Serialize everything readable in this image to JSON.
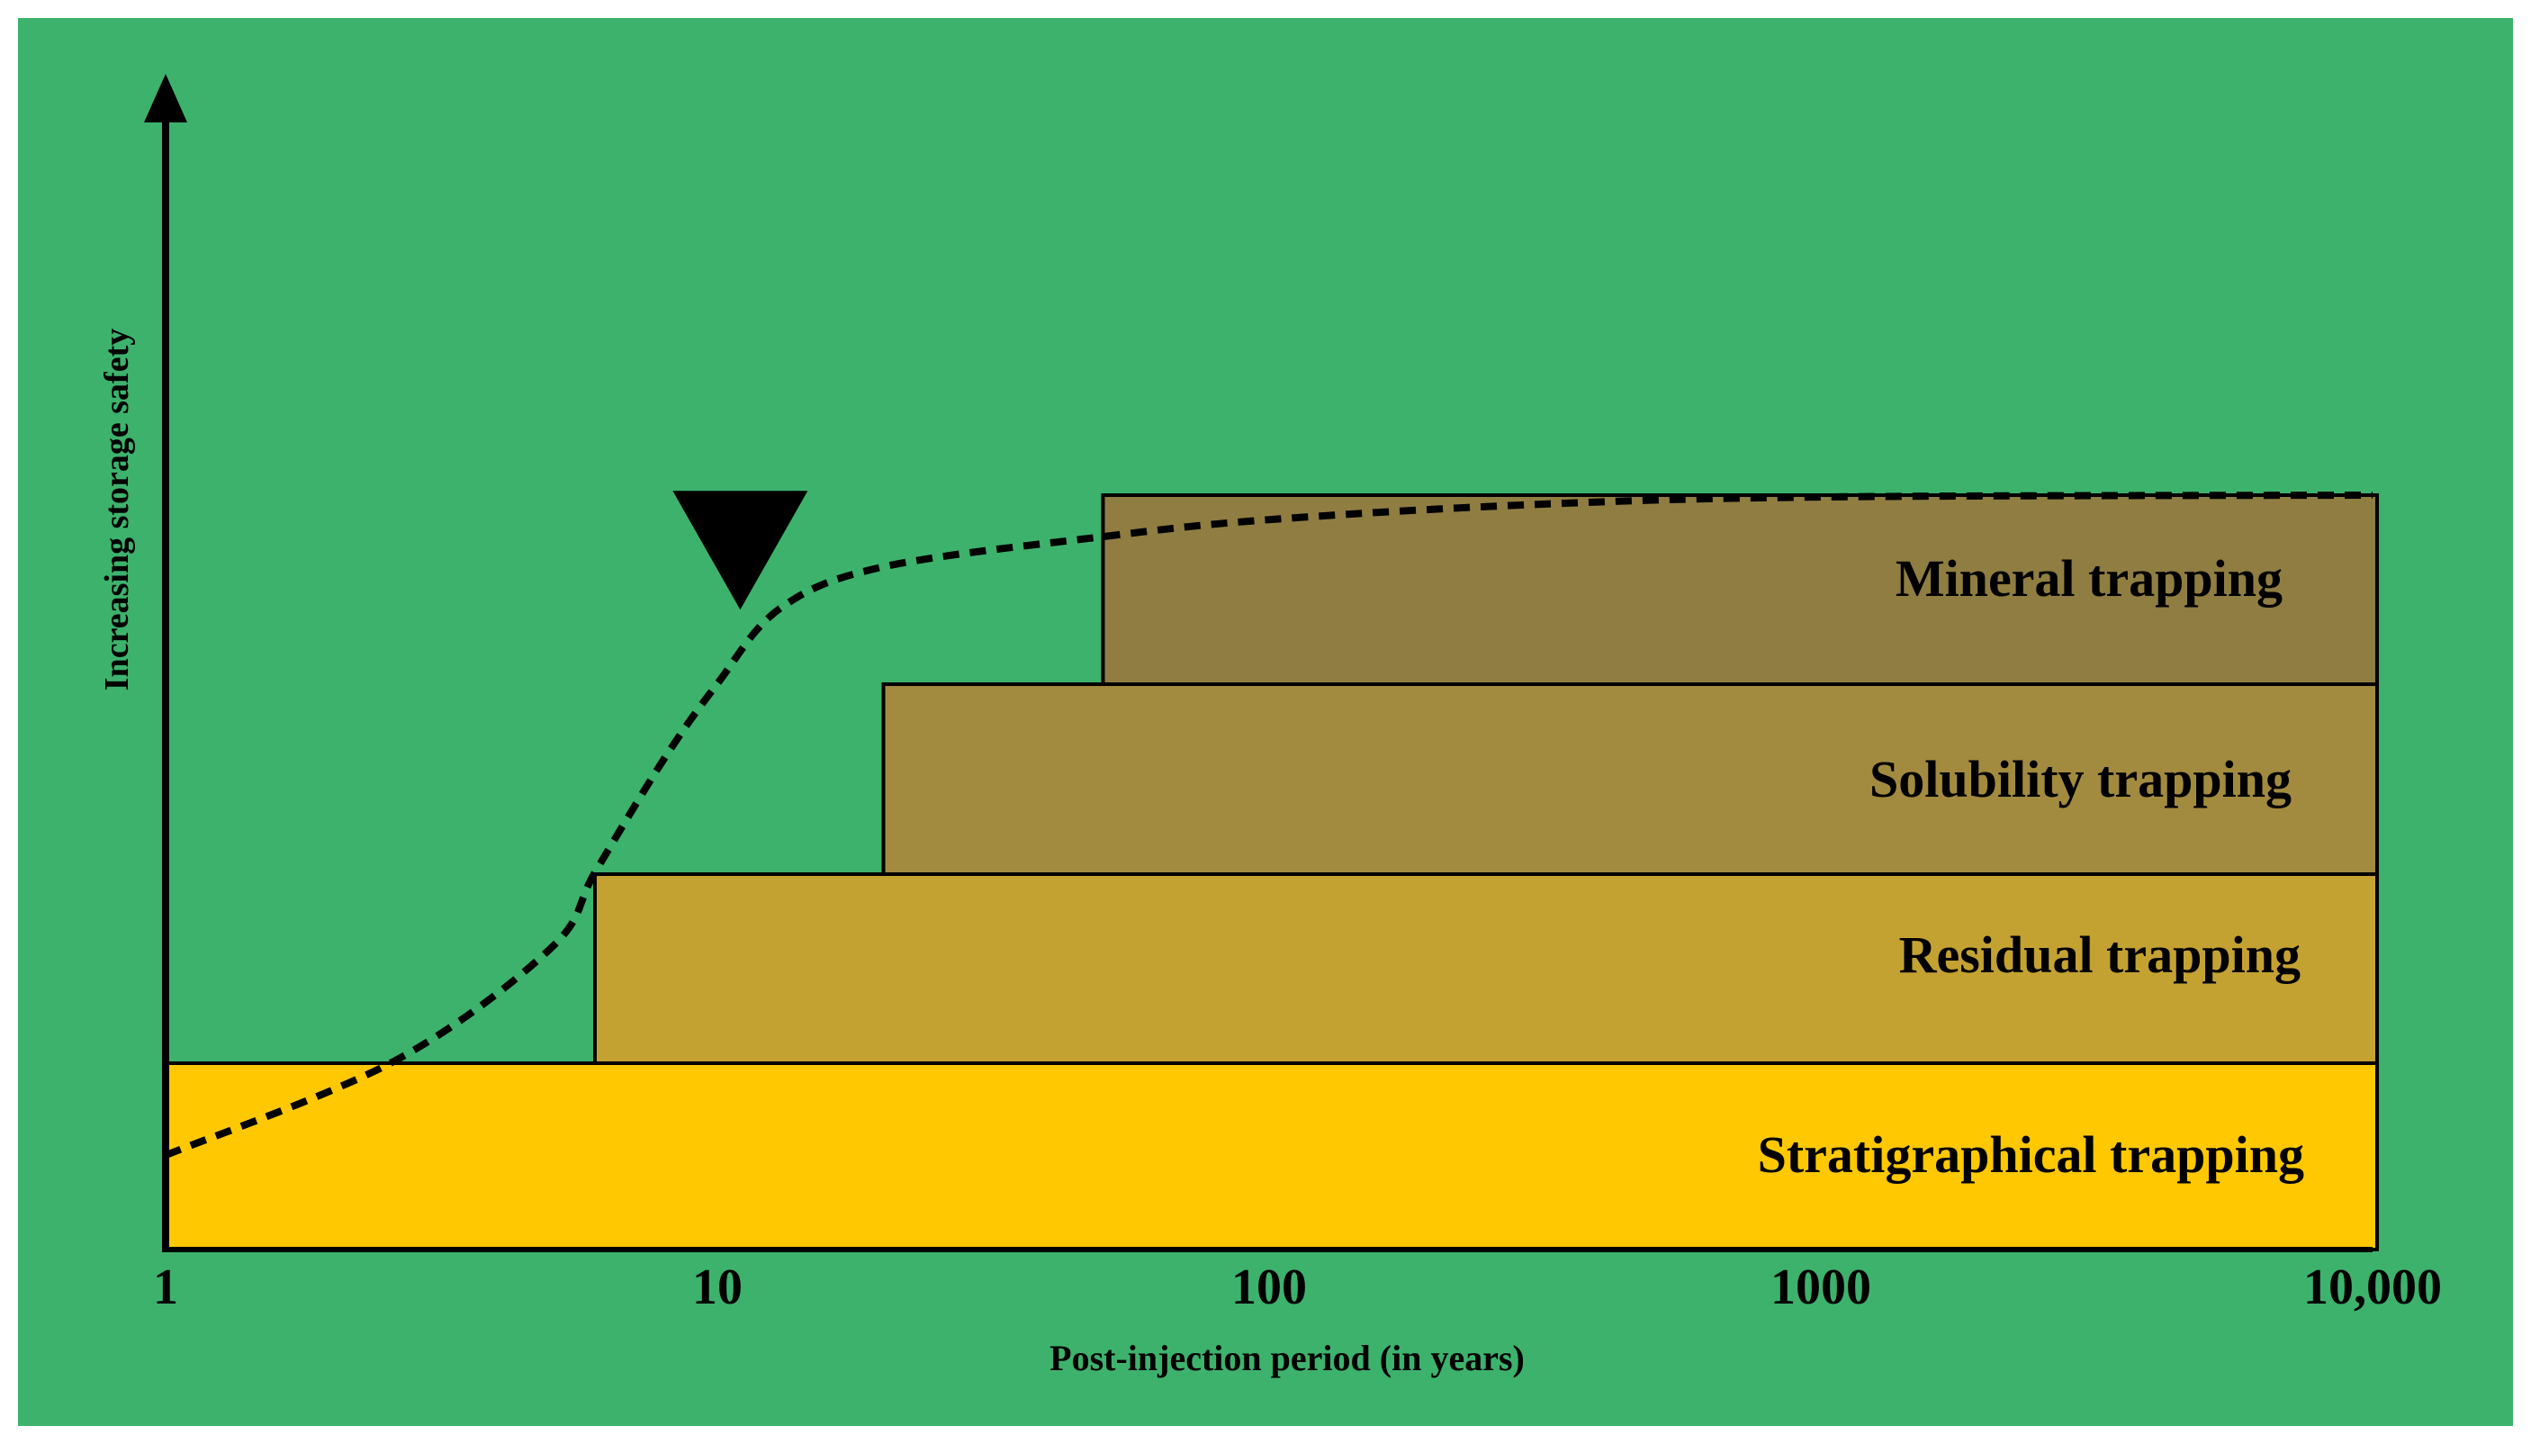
{
  "colors": {
    "background": "#3DB26D",
    "stratigraphical": "#FFC800",
    "residual": "#C4A232",
    "solubility": "#A28A3F",
    "mineral": "#8F7D42",
    "ink": "#000000"
  },
  "axes": {
    "y_label": "Increasing storage safety",
    "x_label": "Post-injection period (in years)",
    "x_ticks": [
      "1",
      "10",
      "100",
      "1000",
      "10,000"
    ]
  },
  "chart_data": {
    "type": "diagram",
    "x_scale": "log",
    "xlim": [
      1,
      10000
    ],
    "ylim": [
      0,
      4
    ],
    "ylabel": "Increasing storage safety",
    "xlabel": "Post-injection period (in years)",
    "tick_values": [
      1,
      10,
      100,
      1000,
      10000
    ],
    "bands": [
      {
        "name": "Stratigraphical trapping",
        "start_years": 1,
        "end_years": 10000,
        "level": 0,
        "color": "#FFC800"
      },
      {
        "name": "Residual trapping",
        "start_years": 6,
        "end_years": 10000,
        "level": 1,
        "color": "#C4A232"
      },
      {
        "name": "Solubility trapping",
        "start_years": 20,
        "end_years": 10000,
        "level": 2,
        "color": "#A28A3F"
      },
      {
        "name": "Mineral trapping",
        "start_years": 50,
        "end_years": 10000,
        "level": 3,
        "color": "#8F7D42"
      }
    ],
    "safety_curve": {
      "style": "dashed",
      "points": [
        {
          "years": 1,
          "safety": 0.5
        },
        {
          "years": 2.6,
          "safety": 1.0
        },
        {
          "years": 5,
          "safety": 1.6
        },
        {
          "years": 6,
          "safety": 2.0
        },
        {
          "years": 8,
          "safety": 2.6
        },
        {
          "years": 10,
          "safety": 3.0
        },
        {
          "years": 13,
          "safety": 3.4
        },
        {
          "years": 20,
          "safety": 3.62
        },
        {
          "years": 50,
          "safety": 3.78
        },
        {
          "years": 100,
          "safety": 3.87
        },
        {
          "years": 300,
          "safety": 3.95
        },
        {
          "years": 1000,
          "safety": 3.99
        },
        {
          "years": 10000,
          "safety": 4.0
        }
      ],
      "marker": {
        "type": "inverted-triangle",
        "years": 11,
        "safety": 3.45
      }
    }
  }
}
